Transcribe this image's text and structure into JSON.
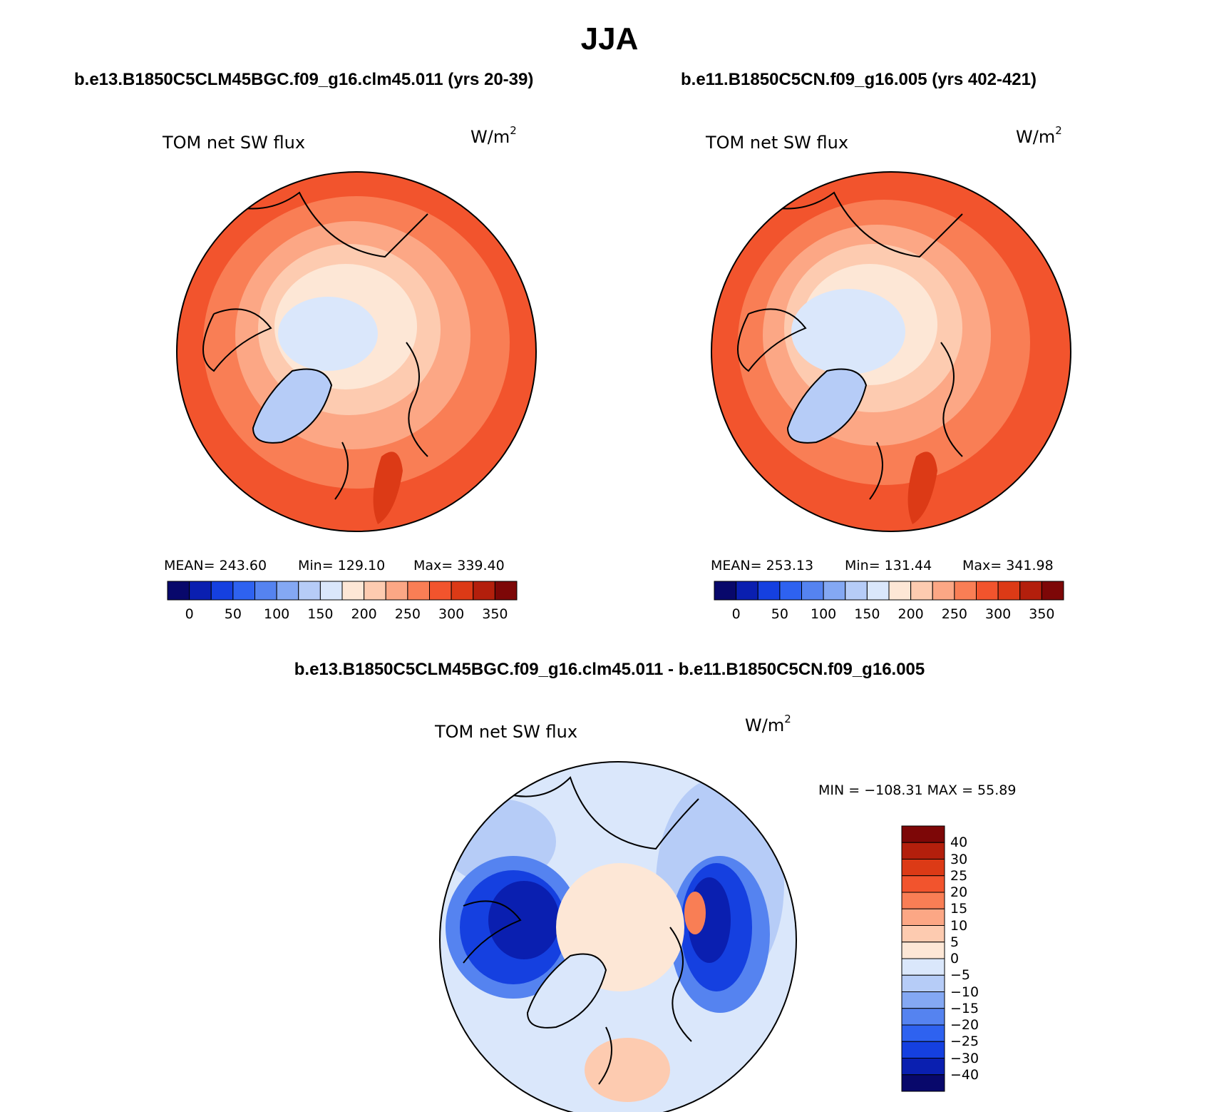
{
  "figure": {
    "season": "JJA"
  },
  "panels": [
    {
      "case": "b.e13.B1850C5CLM45BGC.f09_g16.clm45.011 (yrs 20-39)",
      "variable": "TOM net SW flux",
      "units_base": "W/m",
      "units_exp": "2",
      "stats": {
        "mean": "MEAN= 243.60",
        "min": "Min= 129.10",
        "max": "Max= 339.40"
      }
    },
    {
      "case": "b.e11.B1850C5CN.f09_g16.005 (yrs 402-421)",
      "variable": "TOM net SW flux",
      "units_base": "W/m",
      "units_exp": "2",
      "stats": {
        "mean": "MEAN= 253.13",
        "min": "Min= 131.44",
        "max": "Max= 341.98"
      }
    },
    {
      "case": "b.e13.B1850C5CLM45BGC.f09_g16.clm45.011 - b.e11.B1850C5CN.f09_g16.005",
      "variable": "TOM net SW flux",
      "units_base": "W/m",
      "units_exp": "2",
      "stats": {
        "minmax": "MIN = −108.31 MAX =   55.89"
      }
    }
  ],
  "colorbar_abs": {
    "colors": [
      "#08086b",
      "#0a1fb0",
      "#1540e0",
      "#2e62f0",
      "#5583f0",
      "#84a8f3",
      "#b6ccf7",
      "#dae7fb",
      "#fde7d6",
      "#fdcbb0",
      "#fca785",
      "#f97e55",
      "#f2542d",
      "#dc3a16",
      "#b31f0c",
      "#7d0707"
    ],
    "tick_labels": [
      "0",
      "50",
      "100",
      "150",
      "200",
      "250",
      "300",
      "350"
    ]
  },
  "colorbar_diff": {
    "colors": [
      "#08086b",
      "#0a1fb0",
      "#1540e0",
      "#2e62f0",
      "#5583f0",
      "#84a8f3",
      "#b6ccf7",
      "#dae7fb",
      "#fde7d6",
      "#fdcbb0",
      "#fca785",
      "#f97e55",
      "#f2542d",
      "#dc3a16",
      "#b31f0c",
      "#7d0707"
    ],
    "tick_labels": [
      "40",
      "30",
      "25",
      "20",
      "15",
      "10",
      "5",
      "0",
      "−5",
      "−10",
      "−15",
      "−20",
      "−25",
      "−30",
      "−40"
    ]
  }
}
